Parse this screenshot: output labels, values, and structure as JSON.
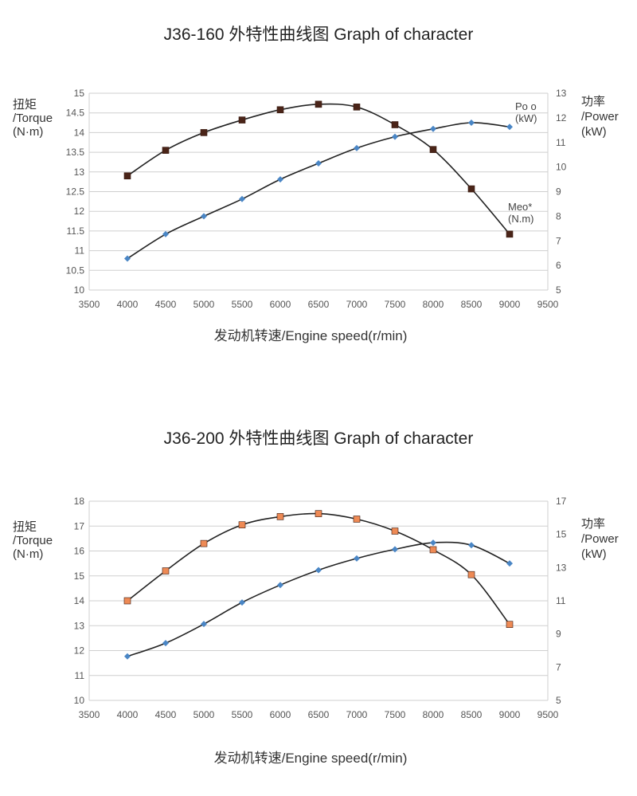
{
  "chart_data": [
    {
      "type": "line",
      "title": "J36-160  外特性曲线图 Graph of character",
      "xlabel": "发动机转速/Engine speed(r/min)",
      "ylabel_left": [
        "扭矩",
        "/Torque",
        "(N·m)"
      ],
      "ylabel_right": [
        "功率",
        "/Power",
        "(kW)"
      ],
      "x_ticks": [
        3500,
        4000,
        4500,
        5000,
        5500,
        6000,
        6500,
        7000,
        7500,
        8000,
        8500,
        9000,
        9500
      ],
      "y_left_ticks": [
        "10",
        "10.5",
        "11",
        "11.5",
        "12",
        "12.5",
        "13",
        "13.5",
        "14",
        "14.5",
        "15"
      ],
      "y_right_ticks": [
        "5",
        "6",
        "7",
        "8",
        "9",
        "10",
        "11",
        "12",
        "13"
      ],
      "xlim": [
        3500,
        9500
      ],
      "ylim_left": [
        10,
        15
      ],
      "ylim_right": [
        5,
        13
      ],
      "grid": true,
      "series": [
        {
          "name_lines": [
            "Meo*",
            "(N.m)"
          ],
          "axis": "left",
          "marker": "square",
          "color": "#4a2418",
          "x": [
            4000,
            4500,
            5000,
            5500,
            6000,
            6500,
            7000,
            7500,
            8000,
            8500,
            9000
          ],
          "values": [
            12.9,
            13.55,
            14.0,
            14.32,
            14.58,
            14.72,
            14.65,
            14.2,
            13.57,
            12.57,
            11.42
          ]
        },
        {
          "name_lines": [
            "Po o",
            "(kW)"
          ],
          "axis": "right",
          "marker": "diamond",
          "color": "#4a86c5",
          "x": [
            4000,
            4500,
            5000,
            5500,
            6000,
            6500,
            7000,
            7500,
            8000,
            8500,
            9000
          ],
          "values": [
            6.28,
            7.27,
            8.0,
            8.7,
            9.5,
            10.15,
            10.77,
            11.23,
            11.55,
            11.8,
            11.63
          ]
        }
      ]
    },
    {
      "type": "line",
      "title": "J36-200  外特性曲线图 Graph of character",
      "xlabel": "发动机转速/Engine speed(r/min)",
      "ylabel_left": [
        "扭矩",
        "/Torque",
        "(N·m)"
      ],
      "ylabel_right": [
        "功率",
        "/Power",
        "(kW)"
      ],
      "x_ticks": [
        3500,
        4000,
        4500,
        5000,
        5500,
        6000,
        6500,
        7000,
        7500,
        8000,
        8500,
        9000,
        9500
      ],
      "y_left_ticks": [
        "10",
        "11",
        "12",
        "13",
        "14",
        "15",
        "16",
        "17",
        "18"
      ],
      "y_right_ticks": [
        "5",
        "7",
        "9",
        "11",
        "13",
        "15",
        "17"
      ],
      "xlim": [
        3500,
        9500
      ],
      "ylim_left": [
        10,
        18
      ],
      "ylim_right": [
        5,
        17
      ],
      "grid": true,
      "series": [
        {
          "name_lines": [],
          "axis": "left",
          "marker": "square",
          "color": "#ee8a55",
          "x": [
            4000,
            4500,
            5000,
            5500,
            6000,
            6500,
            7000,
            7500,
            8000,
            8500,
            9000
          ],
          "values": [
            14.0,
            15.2,
            16.3,
            17.05,
            17.38,
            17.5,
            17.28,
            16.8,
            16.05,
            15.05,
            13.05
          ]
        },
        {
          "name_lines": [],
          "axis": "right",
          "marker": "diamond",
          "color": "#4a86c5",
          "x": [
            4000,
            4500,
            5000,
            5500,
            6000,
            6500,
            7000,
            7500,
            8000,
            8500,
            9000
          ],
          "values": [
            7.65,
            8.45,
            9.6,
            10.9,
            11.95,
            12.85,
            13.55,
            14.1,
            14.5,
            14.35,
            13.25
          ]
        }
      ]
    }
  ]
}
